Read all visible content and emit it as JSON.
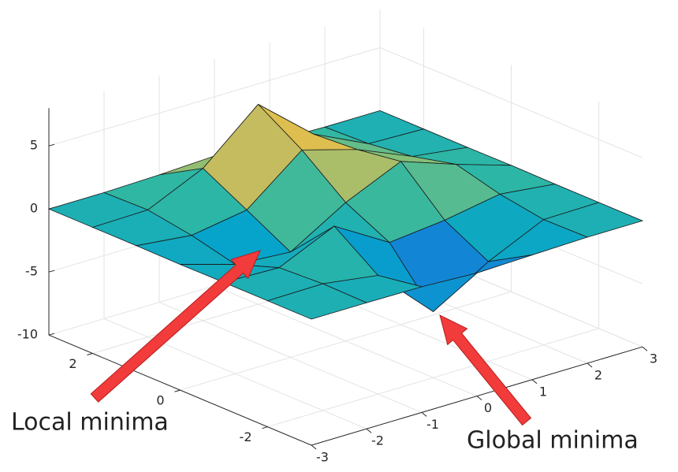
{
  "chart_data": {
    "type": "surface",
    "x": [
      -3,
      -2,
      -1,
      0,
      1,
      2,
      3
    ],
    "y": [
      -3,
      -2,
      -1,
      0,
      1,
      2,
      3
    ],
    "z": [
      [
        0,
        0,
        -0.03,
        -0.24,
        -0.11,
        0,
        0
      ],
      [
        0,
        0.05,
        -0.59,
        -4.76,
        -2.09,
        -0.06,
        0
      ],
      [
        0,
        -0.13,
        1.86,
        -0.73,
        -0.27,
        0.5,
        0
      ],
      [
        -0.03,
        -1.33,
        -1.65,
        0.98,
        2.94,
        1.41,
        0.03
      ],
      [
        0,
        -0.48,
        0.23,
        3.69,
        2.43,
        0.58,
        0
      ],
      [
        0,
        0.08,
        2.08,
        5.86,
        2.2,
        0.13,
        0
      ],
      [
        0,
        0,
        0.11,
        0.3,
        0.11,
        0,
        0
      ]
    ],
    "xlim": [
      -3,
      3
    ],
    "ylim": [
      -3,
      3
    ],
    "zlim": [
      -10,
      8
    ],
    "xticks": [
      -3,
      -2,
      -1,
      0,
      1,
      2,
      3
    ],
    "yticks": [
      -2,
      0,
      2
    ],
    "zticks": [
      -10,
      -5,
      0,
      5
    ],
    "colormap": "parula",
    "grid": true,
    "annotations": [
      "Local minima",
      "Global minima"
    ]
  }
}
